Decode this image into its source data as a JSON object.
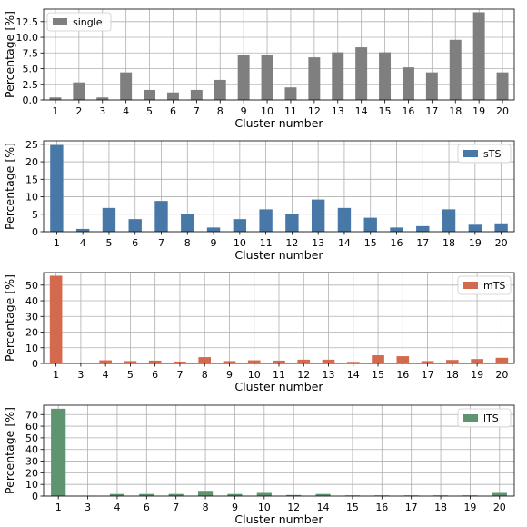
{
  "chart_data": [
    {
      "type": "bar",
      "legend": "single",
      "legend_position": "top-left",
      "color": "#7f7f7f",
      "xlabel": "Cluster number",
      "ylabel": "Percentage [%]",
      "grid": true,
      "ylim": [
        0,
        14.5
      ],
      "yticks": [
        0.0,
        2.5,
        5.0,
        7.5,
        10.0,
        12.5
      ],
      "ytick_labels": [
        "0.0",
        "2.5",
        "5.0",
        "7.5",
        "10.0",
        "12.5"
      ],
      "categories": [
        "1",
        "2",
        "3",
        "4",
        "5",
        "6",
        "7",
        "8",
        "9",
        "10",
        "11",
        "12",
        "13",
        "14",
        "15",
        "16",
        "17",
        "18",
        "19",
        "20"
      ],
      "values": [
        0.4,
        2.8,
        0.4,
        4.4,
        1.6,
        1.2,
        1.6,
        3.2,
        7.2,
        7.2,
        2.0,
        6.8,
        7.6,
        8.4,
        7.6,
        5.2,
        4.4,
        9.6,
        14.0,
        4.4
      ]
    },
    {
      "type": "bar",
      "legend": "sTS",
      "legend_position": "top-right",
      "color": "#4878a8",
      "xlabel": "Cluster number",
      "ylabel": "Percentage [%]",
      "grid": true,
      "ylim": [
        0,
        26
      ],
      "yticks": [
        0,
        5,
        10,
        15,
        20,
        25
      ],
      "ytick_labels": [
        "0",
        "5",
        "10",
        "15",
        "20",
        "25"
      ],
      "categories": [
        "1",
        "4",
        "5",
        "6",
        "7",
        "8",
        "9",
        "10",
        "11",
        "12",
        "13",
        "14",
        "15",
        "16",
        "17",
        "18",
        "19",
        "20"
      ],
      "values": [
        24.8,
        0.8,
        6.8,
        3.6,
        8.8,
        5.2,
        1.2,
        3.6,
        6.4,
        5.2,
        9.2,
        6.8,
        4.0,
        1.2,
        1.6,
        6.4,
        2.0,
        2.4
      ]
    },
    {
      "type": "bar",
      "legend": "mTS",
      "legend_position": "top-right",
      "color": "#d46a4d",
      "xlabel": "Cluster number",
      "ylabel": "Percentage [%]",
      "grid": true,
      "ylim": [
        0,
        58
      ],
      "yticks": [
        0,
        10,
        20,
        30,
        40,
        50
      ],
      "ytick_labels": [
        "0",
        "10",
        "20",
        "30",
        "40",
        "50"
      ],
      "categories": [
        "1",
        "3",
        "4",
        "5",
        "6",
        "7",
        "8",
        "9",
        "10",
        "11",
        "12",
        "13",
        "14",
        "15",
        "16",
        "17",
        "18",
        "19",
        "20"
      ],
      "values": [
        56.0,
        0.3,
        2.0,
        1.5,
        1.8,
        1.2,
        4.0,
        1.5,
        2.0,
        1.8,
        2.4,
        2.4,
        1.0,
        5.2,
        4.6,
        1.5,
        2.2,
        2.8,
        3.6
      ]
    },
    {
      "type": "bar",
      "legend": "lTS",
      "legend_position": "top-right",
      "color": "#5e9470",
      "xlabel": "Cluster number",
      "ylabel": "Percentage [%]",
      "grid": true,
      "ylim": [
        0,
        78
      ],
      "yticks": [
        0,
        10,
        20,
        30,
        40,
        50,
        60,
        70
      ],
      "ytick_labels": [
        "0",
        "10",
        "20",
        "30",
        "40",
        "50",
        "60",
        "70"
      ],
      "categories": [
        "1",
        "3",
        "4",
        "6",
        "7",
        "8",
        "9",
        "10",
        "12",
        "14",
        "15",
        "16",
        "17",
        "18",
        "19",
        "20"
      ],
      "values": [
        75.0,
        0.3,
        1.8,
        1.8,
        1.8,
        4.5,
        1.8,
        2.7,
        0.9,
        1.8,
        0.6,
        0.6,
        0.6,
        0.6,
        0.6,
        2.7
      ]
    }
  ]
}
